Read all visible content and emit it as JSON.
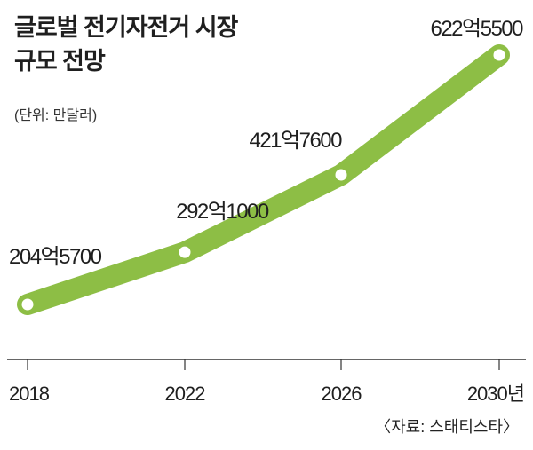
{
  "title_line1": "글로벌 전기자전거 시장",
  "title_line2": "규모 전망",
  "unit": "(단위: 만달러)",
  "source": "〈자료: 스태티스타〉",
  "colors": {
    "line": "#8dbe45",
    "marker_fill": "#ffffff",
    "axis": "#333333"
  },
  "chart_data": {
    "type": "line",
    "title": "글로벌 전기자전거 시장 규모 전망",
    "ylabel": "(단위: 만달러)",
    "x": [
      "2018",
      "2022",
      "2026",
      "2030"
    ],
    "x_tick_labels": [
      "2018",
      "2022",
      "2026",
      "2030년"
    ],
    "values": [
      2045700,
      2921000,
      4217600,
      6225500
    ],
    "value_labels": [
      "204억5700",
      "292억1000",
      "421억7600",
      "622억5500"
    ],
    "ylim": [
      0,
      7000000
    ],
    "grid": false,
    "legend": "none"
  }
}
